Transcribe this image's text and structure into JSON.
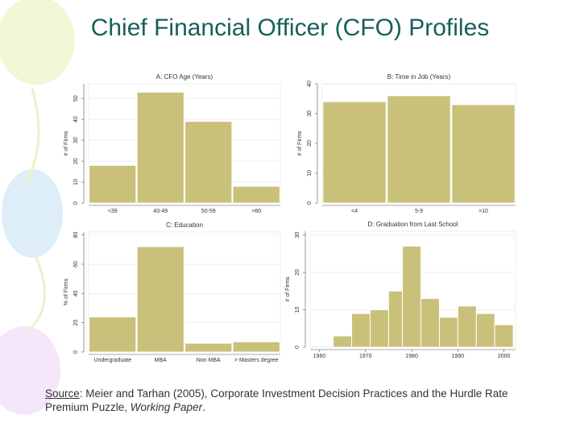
{
  "title": "Chief Financial Officer (CFO) Profiles",
  "source": {
    "label": "Source",
    "text": ": Meier and Tarhan (2005), Corporate Investment Decision Practices and the Hurdle Rate Premium Puzzle, ",
    "journal": "Working Paper",
    "end": "."
  },
  "chart_data": [
    {
      "type": "bar",
      "title": "A: CFO Age (Years)",
      "y_label": "# of Firms",
      "categories": [
        "<39",
        "40-49",
        "50-59",
        ">60"
      ],
      "values": [
        18,
        53,
        39,
        8
      ],
      "color": "#c9c07a",
      "ylim": [
        0,
        57
      ],
      "yticks": [
        0,
        10,
        20,
        30,
        40,
        50
      ],
      "grid": true
    },
    {
      "type": "bar",
      "title": "B: Time in Job (Years)",
      "y_label": "# of Firms",
      "categories": [
        "<4",
        "5-9",
        ">10"
      ],
      "values": [
        34,
        36,
        33
      ],
      "color": "#c9c07a",
      "ylim": [
        0,
        40
      ],
      "yticks": [
        0,
        10,
        20,
        30,
        40
      ],
      "grid": true
    },
    {
      "type": "bar",
      "title": "C: Education",
      "y_label": "% of Firms",
      "categories": [
        "Undergraduate",
        "MBA",
        "Non MBA",
        "> Masters degree"
      ],
      "values": [
        24,
        72,
        6,
        7
      ],
      "color": "#c9c07a",
      "ylim": [
        0,
        82
      ],
      "yticks": [
        0,
        20,
        40,
        60,
        80
      ],
      "grid": true
    },
    {
      "type": "histogram",
      "title": "D: Graduation from Last School",
      "y_label": "# of Firms",
      "bins": [
        1963,
        1967,
        1971,
        1975,
        1978,
        1982,
        1986,
        1990,
        1994,
        1998,
        2002
      ],
      "values": [
        3,
        9,
        10,
        15,
        27,
        13,
        8,
        11,
        9,
        6
      ],
      "color": "#c9c07a",
      "xlim": [
        1958,
        2002.5
      ],
      "xticks": [
        1960,
        1970,
        1980,
        1990,
        2000
      ],
      "ylim": [
        0,
        31
      ],
      "yticks": [
        0,
        10,
        20,
        30
      ],
      "grid": true
    }
  ]
}
